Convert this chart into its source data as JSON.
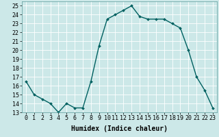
{
  "x": [
    0,
    1,
    2,
    3,
    4,
    5,
    6,
    7,
    8,
    9,
    10,
    11,
    12,
    13,
    14,
    15,
    16,
    17,
    18,
    19,
    20,
    21,
    22,
    23
  ],
  "y": [
    16.5,
    15.0,
    14.5,
    14.0,
    13.0,
    14.0,
    13.5,
    13.5,
    16.5,
    20.5,
    23.5,
    24.0,
    24.5,
    25.0,
    23.8,
    23.5,
    23.5,
    23.5,
    23.0,
    22.5,
    20.0,
    17.0,
    15.5,
    13.5
  ],
  "xlim": [
    -0.5,
    23.5
  ],
  "ylim": [
    13,
    25.5
  ],
  "yticks": [
    13,
    14,
    15,
    16,
    17,
    18,
    19,
    20,
    21,
    22,
    23,
    24,
    25
  ],
  "xticks": [
    0,
    1,
    2,
    3,
    4,
    5,
    6,
    7,
    8,
    9,
    10,
    11,
    12,
    13,
    14,
    15,
    16,
    17,
    18,
    19,
    20,
    21,
    22,
    23
  ],
  "xlabel": "Humidex (Indice chaleur)",
  "line_color": "#006060",
  "marker_color": "#006060",
  "bg_color": "#cce8e8",
  "grid_color": "#b0d8d8",
  "xlabel_fontsize": 7,
  "tick_fontsize": 6,
  "linewidth": 1.0,
  "markersize": 2.0
}
